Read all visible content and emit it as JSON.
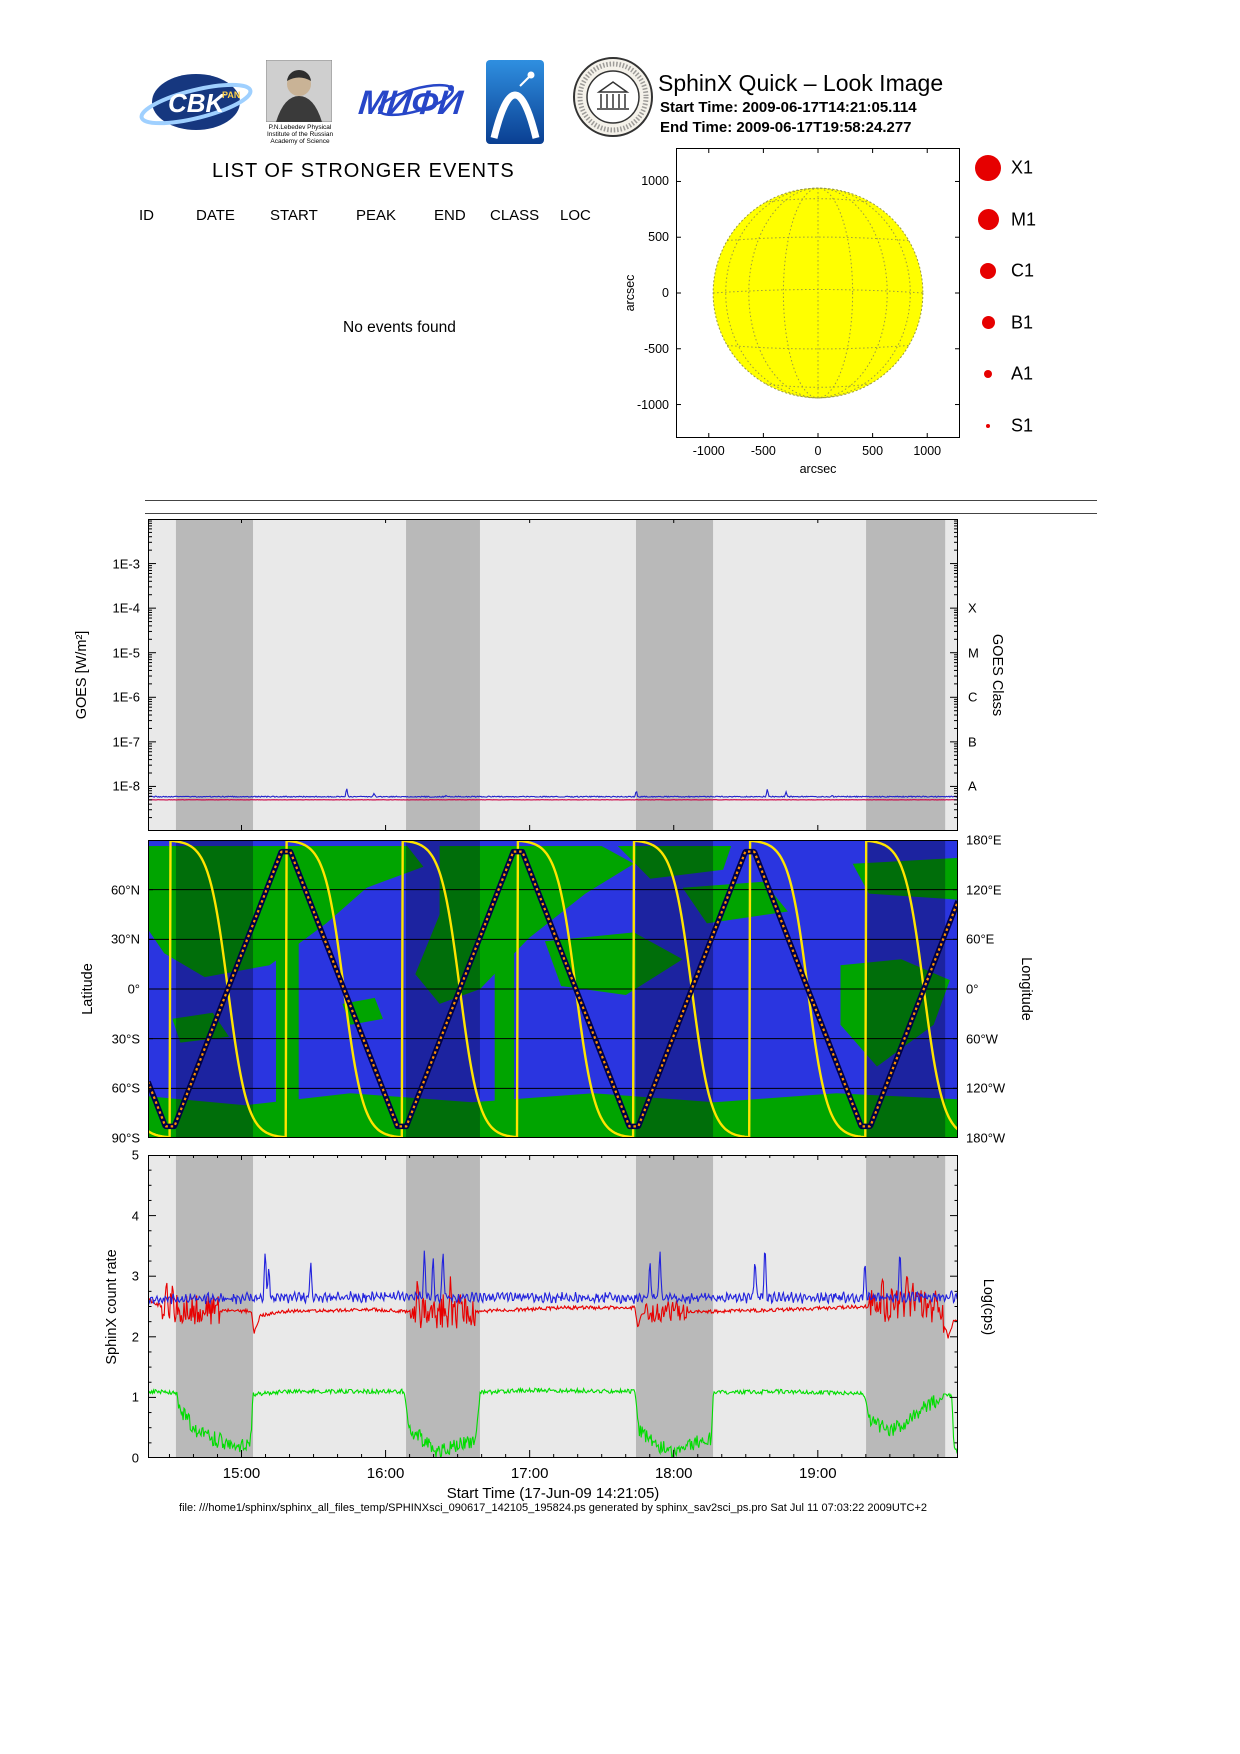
{
  "header": {
    "title": "SphinX Quick – Look Image",
    "start_time": "Start Time: 2009-06-17T14:21:05.114",
    "end_time": "End Time: 2009-06-17T19:58:24.277"
  },
  "logos": {
    "cbk_text": "CBK",
    "cbk_sub": "PAN",
    "mephi_text": "МИФИ",
    "lebedev_caption": [
      "P.N.Lebedev Physical",
      "Institute of the Russian",
      "Academy of Science"
    ]
  },
  "events": {
    "heading": "LIST OF STRONGER EVENTS",
    "columns": [
      "ID",
      "DATE",
      "START",
      "PEAK",
      "END",
      "CLASS",
      "LOC"
    ],
    "rows": [],
    "empty_message": "No events found"
  },
  "legend": {
    "color": "#e60000",
    "items": [
      {
        "label": "X1",
        "radius": 13
      },
      {
        "label": "M1",
        "radius": 10.5
      },
      {
        "label": "C1",
        "radius": 8
      },
      {
        "label": "B1",
        "radius": 6.5
      },
      {
        "label": "A1",
        "radius": 4
      },
      {
        "label": "S1",
        "radius": 2.2
      }
    ]
  },
  "footer": {
    "text": "file: ///home1/sphinx/sphinx_all_files_temp/SPHINXsci_090617_142105_195824.ps generated by sphinx_sav2sci_ps.pro Sat Jul 11 07:03:22 2009UTC+2"
  },
  "chart_data": [
    {
      "id": "solar_disk",
      "type": "scatter",
      "title": "",
      "xlabel": "arcsec",
      "ylabel": "arcsec",
      "xlim": [
        -1300,
        1300
      ],
      "ylim": [
        -1300,
        1300
      ],
      "xticks": [
        -1000,
        -500,
        0,
        500,
        1000
      ],
      "yticks": [
        1000,
        500,
        0,
        -500,
        -1000
      ],
      "sun_radius_arcsec": 960,
      "disk_fill": "#ffff00",
      "disk_edge": "#9a9a40",
      "grid_step_deg": 30,
      "events": []
    },
    {
      "id": "goes_flux",
      "type": "line",
      "ylabel": "GOES [W/m²]",
      "right_axis_label": "GOES Class",
      "yscale": "log",
      "ylim_exp": [
        -9,
        -2
      ],
      "ytick_labels": [
        "1E-8",
        "1E-7",
        "1E-6",
        "1E-5",
        "1E-4",
        "1E-3"
      ],
      "ytick_exps": [
        -8,
        -7,
        -6,
        -5,
        -4,
        -3
      ],
      "goes_class_labels": [
        {
          "label": "A",
          "exp": -8
        },
        {
          "label": "B",
          "exp": -7
        },
        {
          "label": "C",
          "exp": -6
        },
        {
          "label": "M",
          "exp": -5
        },
        {
          "label": "X",
          "exp": -4
        }
      ],
      "x_hours": [
        14.351,
        19.973
      ],
      "eclipse_bands_hours": [
        [
          14.545,
          15.08
        ],
        [
          16.142,
          16.655
        ],
        [
          17.738,
          18.273
        ],
        [
          19.335,
          19.884
        ]
      ],
      "bg": "#e9e9e9",
      "band_color": "#b9b9b9",
      "series": [
        {
          "name": "goes-flux",
          "color": "#2222cc",
          "points_log": [
            [
              14.351,
              -8.23
            ],
            [
              19.973,
              -8.23
            ]
          ],
          "noise": 0.012,
          "spikes_log": [
            [
              15.73,
              -8.02
            ],
            [
              15.92,
              -8.15
            ],
            [
              16.42,
              -8.2
            ],
            [
              17.45,
              -8.22
            ],
            [
              17.74,
              -8.08
            ],
            [
              18.3,
              -8.22
            ],
            [
              18.65,
              -8.04
            ],
            [
              18.78,
              -8.12
            ],
            [
              19.1,
              -8.2
            ]
          ]
        },
        {
          "name": "threshold-line",
          "color": "#cc0044",
          "points_log": [
            [
              14.351,
              -8.3
            ],
            [
              19.973,
              -8.3
            ]
          ],
          "noise": 0.003,
          "spikes_log": []
        }
      ]
    },
    {
      "id": "ground_track",
      "type": "line",
      "ylabel": "Latitude",
      "right_axis_label": "Longitude",
      "lat_ticks": [
        {
          "label": "60°N",
          "v": 60
        },
        {
          "label": "30°N",
          "v": 30
        },
        {
          "label": "0°",
          "v": 0
        },
        {
          "label": "30°S",
          "v": -30
        },
        {
          "label": "60°S",
          "v": -60
        },
        {
          "label": "90°S",
          "v": -90
        }
      ],
      "lon_ticks": [
        {
          "label": "180°E",
          "v": 180
        },
        {
          "label": "120°E",
          "v": 120
        },
        {
          "label": "60°E",
          "v": 60
        },
        {
          "label": "0°",
          "v": 0
        },
        {
          "label": "60°W",
          "v": -60
        },
        {
          "label": "120°W",
          "v": -120
        },
        {
          "label": "180°W",
          "v": -180
        }
      ],
      "x_hours": [
        14.351,
        19.973
      ],
      "eclipse_bands_hours": [
        [
          14.545,
          15.08
        ],
        [
          16.142,
          16.655
        ],
        [
          17.738,
          18.273
        ],
        [
          19.335,
          19.884
        ]
      ],
      "ocean_color": "#2a35e0",
      "land_color": "#00a400",
      "track": {
        "outer_color": "#000046",
        "inner_color": "#ff9100",
        "valley_time": 14.503,
        "period_hours": 1.61,
        "clip_lat": 83
      },
      "longitude_curve": {
        "color": "#ffe400",
        "first_crossing": 14.503,
        "crossing_period_hours": 0.805,
        "steepness": 6
      },
      "land_polygons": [
        [
          [
            0,
            0.02
          ],
          [
            0.32,
            0.02
          ],
          [
            0.34,
            0.09
          ],
          [
            0.27,
            0.16
          ],
          [
            0.22,
            0.28
          ],
          [
            0.15,
            0.42
          ],
          [
            0.07,
            0.46
          ],
          [
            0.02,
            0.38
          ],
          [
            0,
            0.3
          ]
        ],
        [
          [
            0.158,
            0.02
          ],
          [
            0.186,
            0.02
          ],
          [
            0.186,
            0.97
          ],
          [
            0.158,
            0.97
          ]
        ],
        [
          [
            0.36,
            0.02
          ],
          [
            0.56,
            0.02
          ],
          [
            0.6,
            0.08
          ],
          [
            0.54,
            0.18
          ],
          [
            0.47,
            0.33
          ],
          [
            0.41,
            0.5
          ],
          [
            0.36,
            0.55
          ],
          [
            0.33,
            0.45
          ],
          [
            0.36,
            0.25
          ]
        ],
        [
          [
            0.428,
            0.02
          ],
          [
            0.452,
            0.02
          ],
          [
            0.452,
            0.88
          ],
          [
            0.428,
            0.88
          ]
        ],
        [
          [
            0.58,
            0.02
          ],
          [
            0.72,
            0.02
          ],
          [
            0.71,
            0.1
          ],
          [
            0.62,
            0.13
          ]
        ],
        [
          [
            0.66,
            0.16
          ],
          [
            0.76,
            0.14
          ],
          [
            0.79,
            0.24
          ],
          [
            0.69,
            0.28
          ]
        ],
        [
          [
            0.87,
            0.08
          ],
          [
            1,
            0.06
          ],
          [
            1,
            0.2
          ],
          [
            0.89,
            0.18
          ]
        ],
        [
          [
            0.855,
            0.42
          ],
          [
            0.93,
            0.4
          ],
          [
            0.99,
            0.47
          ],
          [
            0.97,
            0.62
          ],
          [
            0.9,
            0.76
          ],
          [
            0.855,
            0.62
          ]
        ],
        [
          [
            0.49,
            0.34
          ],
          [
            0.6,
            0.31
          ],
          [
            0.66,
            0.4
          ],
          [
            0.59,
            0.52
          ],
          [
            0.51,
            0.49
          ]
        ],
        [
          [
            0,
            0.86
          ],
          [
            0.12,
            0.89
          ],
          [
            0.25,
            0.85
          ],
          [
            0.4,
            0.88
          ],
          [
            0.55,
            0.85
          ],
          [
            0.7,
            0.88
          ],
          [
            0.85,
            0.85
          ],
          [
            1,
            0.87
          ],
          [
            1,
            1
          ],
          [
            0,
            1
          ]
        ],
        [
          [
            0.03,
            0.6
          ],
          [
            0.08,
            0.58
          ],
          [
            0.1,
            0.66
          ],
          [
            0.04,
            0.68
          ]
        ],
        [
          [
            0.24,
            0.55
          ],
          [
            0.28,
            0.53
          ],
          [
            0.29,
            0.6
          ],
          [
            0.25,
            0.62
          ]
        ]
      ]
    },
    {
      "id": "sphinx_count_rate",
      "type": "line",
      "ylabel": "SphinX count rate",
      "right_axis_label": "Log(cps)",
      "xlabel": "Start Time (17-Jun-09 14:21:05)",
      "ylim": [
        0,
        5
      ],
      "yticks": [
        0,
        1,
        2,
        3,
        4,
        5
      ],
      "xtick_labels": [
        {
          "label": "15:00",
          "t": 15
        },
        {
          "label": "16:00",
          "t": 16
        },
        {
          "label": "17:00",
          "t": 17
        },
        {
          "label": "18:00",
          "t": 18
        },
        {
          "label": "19:00",
          "t": 19
        }
      ],
      "x_hours": [
        14.351,
        19.973
      ],
      "eclipse_bands_hours": [
        [
          14.545,
          15.08
        ],
        [
          16.142,
          16.655
        ],
        [
          17.738,
          18.273
        ],
        [
          19.335,
          19.884
        ]
      ],
      "bg": "#e9e9e9",
      "band_color": "#b9b9b9",
      "series": [
        {
          "name": "green-channel",
          "color": "#00dd00",
          "noise": 0.035,
          "points": [
            [
              14.351,
              1.1
            ],
            [
              14.55,
              1.08
            ],
            [
              14.58,
              0.75
            ],
            [
              14.7,
              0.4
            ],
            [
              14.9,
              0.25
            ],
            [
              15.06,
              0.18
            ],
            [
              15.08,
              1.05
            ],
            [
              15.3,
              1.1
            ],
            [
              16.13,
              1.1
            ],
            [
              16.16,
              0.5
            ],
            [
              16.35,
              0.12
            ],
            [
              16.5,
              0.2
            ],
            [
              16.63,
              0.32
            ],
            [
              16.655,
              1.08
            ],
            [
              17.0,
              1.12
            ],
            [
              17.73,
              1.1
            ],
            [
              17.76,
              0.45
            ],
            [
              17.95,
              0.12
            ],
            [
              18.15,
              0.25
            ],
            [
              18.26,
              0.3
            ],
            [
              18.275,
              1.08
            ],
            [
              18.8,
              1.1
            ],
            [
              19.32,
              1.06
            ],
            [
              19.36,
              0.62
            ],
            [
              19.5,
              0.45
            ],
            [
              19.62,
              0.6
            ],
            [
              19.75,
              0.85
            ],
            [
              19.86,
              1.0
            ],
            [
              19.885,
              1.05
            ],
            [
              19.93,
              1.02
            ],
            [
              19.945,
              0.15
            ],
            [
              19.973,
              0.1
            ]
          ],
          "noisy_regions": [
            [
              14.56,
              15.07,
              0.1
            ],
            [
              16.16,
              16.64,
              0.09
            ],
            [
              17.76,
              18.26,
              0.09
            ],
            [
              19.36,
              19.87,
              0.08
            ]
          ],
          "spikes": []
        },
        {
          "name": "red-channel",
          "color": "#e80000",
          "noise": 0.03,
          "points": [
            [
              14.351,
              2.62
            ],
            [
              14.45,
              2.5
            ],
            [
              14.55,
              2.45
            ],
            [
              15.07,
              2.42
            ],
            [
              15.085,
              2.05
            ],
            [
              15.13,
              2.35
            ],
            [
              15.3,
              2.42
            ],
            [
              15.9,
              2.45
            ],
            [
              16.14,
              2.42
            ],
            [
              16.65,
              2.42
            ],
            [
              17.2,
              2.48
            ],
            [
              17.73,
              2.48
            ],
            [
              17.75,
              2.15
            ],
            [
              17.78,
              2.4
            ],
            [
              18.27,
              2.42
            ],
            [
              18.8,
              2.45
            ],
            [
              19.33,
              2.5
            ],
            [
              19.6,
              2.55
            ],
            [
              19.85,
              2.5
            ],
            [
              19.9,
              1.95
            ],
            [
              19.94,
              2.25
            ],
            [
              19.973,
              2.3
            ]
          ],
          "noisy_regions": [
            [
              14.45,
              14.85,
              0.22
            ],
            [
              16.17,
              16.62,
              0.25
            ],
            [
              17.8,
              18.1,
              0.15
            ],
            [
              19.35,
              19.9,
              0.25
            ]
          ],
          "spikes": [
            [
              14.48,
              2.95
            ],
            [
              14.52,
              2.85
            ],
            [
              16.22,
              2.95
            ],
            [
              16.45,
              3.0
            ],
            [
              19.45,
              3.0
            ],
            [
              19.62,
              3.15
            ],
            [
              19.66,
              2.9
            ]
          ]
        },
        {
          "name": "blue-channel",
          "color": "#2222dd",
          "noise": 0.055,
          "osc": {
            "amp": 0.045,
            "period": 0.03
          },
          "points": [
            [
              14.351,
              2.62
            ],
            [
              16.0,
              2.66
            ],
            [
              18.0,
              2.64
            ],
            [
              19.973,
              2.66
            ]
          ],
          "noisy_regions": [],
          "spikes": [
            [
              15.165,
              3.5
            ],
            [
              15.19,
              3.2
            ],
            [
              15.48,
              3.3
            ],
            [
              16.27,
              3.5
            ],
            [
              16.33,
              3.35
            ],
            [
              16.398,
              3.5
            ],
            [
              17.835,
              3.3
            ],
            [
              17.904,
              3.5
            ],
            [
              18.564,
              3.35
            ],
            [
              18.633,
              3.6
            ],
            [
              19.327,
              3.3
            ],
            [
              19.57,
              3.5
            ]
          ]
        }
      ]
    }
  ]
}
